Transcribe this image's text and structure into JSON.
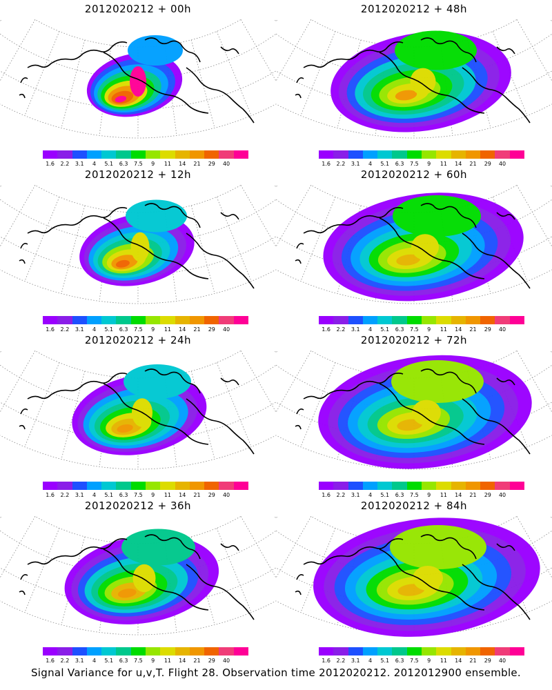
{
  "panels": [
    {
      "id": "p00",
      "title": "2012020212 + 00h",
      "spread": 0.0,
      "intensity": 1.0
    },
    {
      "id": "p48",
      "title": "2012020212 + 48h",
      "spread": 0.65,
      "intensity": 0.75
    },
    {
      "id": "p12",
      "title": "2012020212 + 12h",
      "spread": 0.15,
      "intensity": 0.85
    },
    {
      "id": "p60",
      "title": "2012020212 + 60h",
      "spread": 0.8,
      "intensity": 0.7
    },
    {
      "id": "p24",
      "title": "2012020212 + 24h",
      "spread": 0.3,
      "intensity": 0.8
    },
    {
      "id": "p72",
      "title": "2012020212 + 72h",
      "spread": 0.9,
      "intensity": 0.68
    },
    {
      "id": "p36",
      "title": "2012020212 + 36h",
      "spread": 0.45,
      "intensity": 0.78
    },
    {
      "id": "p84",
      "title": "2012020212 + 84h",
      "spread": 1.0,
      "intensity": 0.7
    }
  ],
  "colorbar": {
    "colors": [
      "#9a00ff",
      "#8a1ee8",
      "#1e50ff",
      "#00a0ff",
      "#00c8d2",
      "#00c88c",
      "#00dc00",
      "#96e600",
      "#dcdc00",
      "#e6b400",
      "#f09600",
      "#f06400",
      "#f03c78",
      "#ff0096"
    ],
    "labels": [
      "1.6",
      "2.2",
      "3.1",
      "4",
      "5.1",
      "6.3",
      "7.5",
      "9",
      "11",
      "14",
      "21",
      "29",
      "40"
    ]
  },
  "caption": "Signal Variance for u,v,T. Flight 28. Observation time 2012020212. 2012012900 ensemble."
}
